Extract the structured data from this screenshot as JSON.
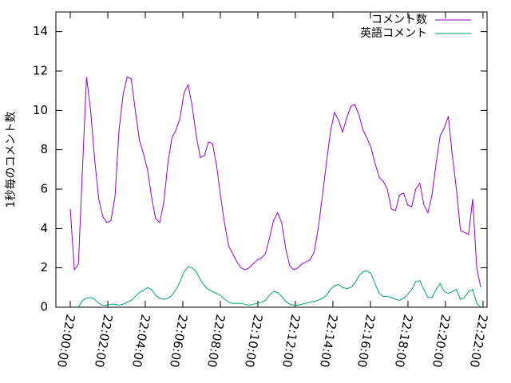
{
  "chart_data": {
    "type": "line",
    "ylabel": "1秒毎のコメント数",
    "x": [
      0,
      13,
      26,
      39,
      52,
      65,
      78,
      91,
      104,
      117,
      130,
      143,
      156,
      169,
      182,
      195,
      208,
      221,
      234,
      247,
      260,
      273,
      286,
      299,
      312,
      325,
      338,
      351,
      364,
      377,
      390,
      403,
      416,
      429,
      442,
      455,
      468,
      481,
      494,
      507,
      520,
      533,
      546,
      559,
      572,
      585,
      598,
      611,
      624,
      637,
      650,
      663,
      676,
      689,
      702,
      715,
      728,
      741,
      754,
      767,
      780,
      793,
      806,
      819,
      832,
      845,
      858,
      871,
      884,
      897,
      910,
      923,
      936,
      949,
      962,
      975,
      988,
      1001,
      1014,
      1027,
      1040,
      1053,
      1066,
      1079,
      1092,
      1105,
      1118,
      1131,
      1144,
      1157,
      1170,
      1183,
      1196,
      1209,
      1222,
      1235,
      1248,
      1261,
      1274,
      1287,
      1300,
      1313
    ],
    "series": [
      {
        "name": "コメント数",
        "color": "#9400d3",
        "values": [
          5.0,
          1.9,
          2.2,
          7,
          11.7,
          10,
          7.5,
          5.5,
          4.6,
          4.3,
          4.4,
          5.6,
          9,
          10.8,
          11.7,
          11.6,
          10,
          8.5,
          7.8,
          7.0,
          5.6,
          4.5,
          4.3,
          5.3,
          7.3,
          8.6,
          9.0,
          9.6,
          10.9,
          11.3,
          10.2,
          8.7,
          7.6,
          7.7,
          8.4,
          8.3,
          7.2,
          5.6,
          4.2,
          3.1,
          2.7,
          2.3,
          2.0,
          1.9,
          2.0,
          2.2,
          2.4,
          2.5,
          2.7,
          3.5,
          4.4,
          4.8,
          4.3,
          3.0,
          2.1,
          1.9,
          2.0,
          2.2,
          2.3,
          2.4,
          2.8,
          4.0,
          5.6,
          7.3,
          8.9,
          9.9,
          9.5,
          8.9,
          9.6,
          10.2,
          10.3,
          9.8,
          9.0,
          8.6,
          8.1,
          7.3,
          6.6,
          6.4,
          6.0,
          5.0,
          4.9,
          5.7,
          5.8,
          5.2,
          5.1,
          6.0,
          6.3,
          5.2,
          4.8,
          5.7,
          7.3,
          8.7,
          9.1,
          9.7,
          7.7,
          6.0,
          3.9,
          3.8,
          3.7,
          5.5,
          2.0,
          1.0
        ]
      },
      {
        "name": "英語コメント",
        "color": "#009e73",
        "values": [
          null,
          null,
          0,
          0.35,
          0.45,
          0.5,
          0.4,
          0.2,
          0.1,
          0.1,
          0.15,
          0.15,
          0.1,
          0.15,
          0.25,
          0.35,
          0.55,
          0.75,
          0.85,
          1.0,
          0.9,
          0.6,
          0.45,
          0.4,
          0.45,
          0.6,
          0.9,
          1.3,
          1.8,
          2.05,
          2.0,
          1.8,
          1.4,
          1.1,
          0.9,
          0.8,
          0.7,
          0.6,
          0.4,
          0.25,
          0.2,
          0.2,
          0.2,
          0.15,
          0.1,
          0.15,
          0.2,
          0.25,
          0.35,
          0.6,
          0.8,
          0.75,
          0.55,
          0.3,
          0.15,
          0.1,
          0.1,
          0.15,
          0.2,
          0.25,
          0.3,
          0.35,
          0.45,
          0.6,
          0.9,
          1.1,
          1.15,
          1.0,
          0.95,
          1.0,
          1.2,
          1.6,
          1.8,
          1.85,
          1.7,
          1.2,
          0.7,
          0.55,
          0.55,
          0.5,
          0.4,
          0.35,
          0.45,
          0.65,
          0.9,
          1.3,
          1.35,
          0.9,
          0.5,
          0.5,
          0.9,
          1.2,
          0.8,
          0.7,
          0.8,
          0.9,
          0.4,
          0.5,
          0.8,
          0.9,
          0.2,
          0.0
        ]
      }
    ],
    "xlim": [
      -46,
      1333
    ],
    "xticks": [
      {
        "value": 0,
        "label": "22:00:00"
      },
      {
        "value": 120,
        "label": "22:02:00"
      },
      {
        "value": 240,
        "label": "22:04:00"
      },
      {
        "value": 360,
        "label": "22:06:00"
      },
      {
        "value": 480,
        "label": "22:08:00"
      },
      {
        "value": 600,
        "label": "22:10:00"
      },
      {
        "value": 720,
        "label": "22:12:00"
      },
      {
        "value": 840,
        "label": "22:14:00"
      },
      {
        "value": 960,
        "label": "22:16:00"
      },
      {
        "value": 1080,
        "label": "22:18:00"
      },
      {
        "value": 1200,
        "label": "22:20:00"
      },
      {
        "value": 1320,
        "label": "22:22:00"
      }
    ],
    "ylim": [
      0,
      15
    ],
    "yticks": [
      0,
      2,
      4,
      6,
      8,
      10,
      12,
      14
    ],
    "legend": "top-right"
  }
}
